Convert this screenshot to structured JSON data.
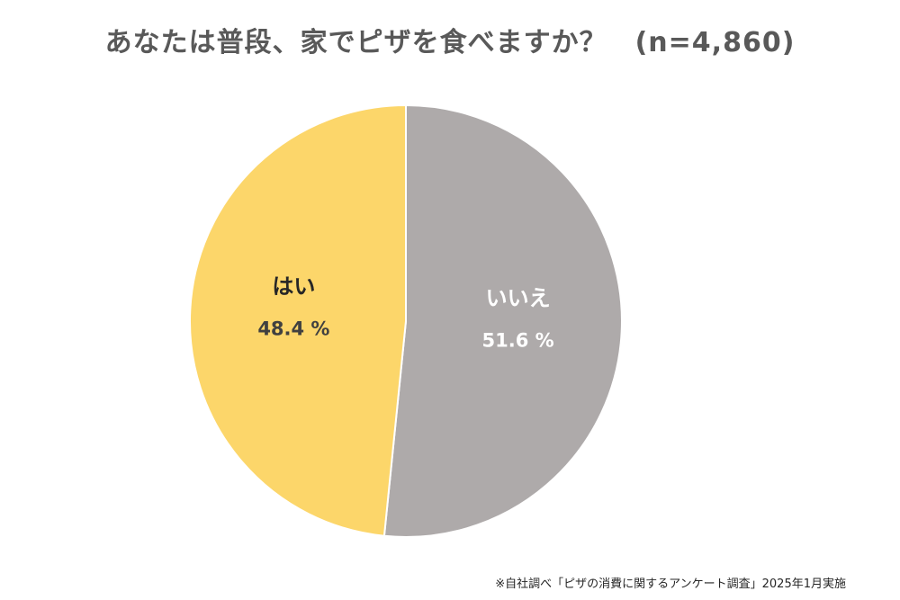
{
  "chart_data": {
    "type": "pie",
    "title": "あなたは普段、家でピザを食べますか？　(n=4,860)",
    "slices": [
      {
        "label": "いいえ",
        "value": 51.6,
        "value_label": "51.6 %",
        "color": "#aeaaaa",
        "label_color": "#ffffff"
      },
      {
        "label": "はい",
        "value": 48.4,
        "value_label": "48.4 %",
        "color": "#fcd66a",
        "label_color": "#262626"
      }
    ],
    "start": "12 o'clock",
    "direction": "clockwise",
    "legend": "none"
  },
  "footnote": "※自社調べ「ピザの消費に関するアンケート調査」2025年1月実施"
}
